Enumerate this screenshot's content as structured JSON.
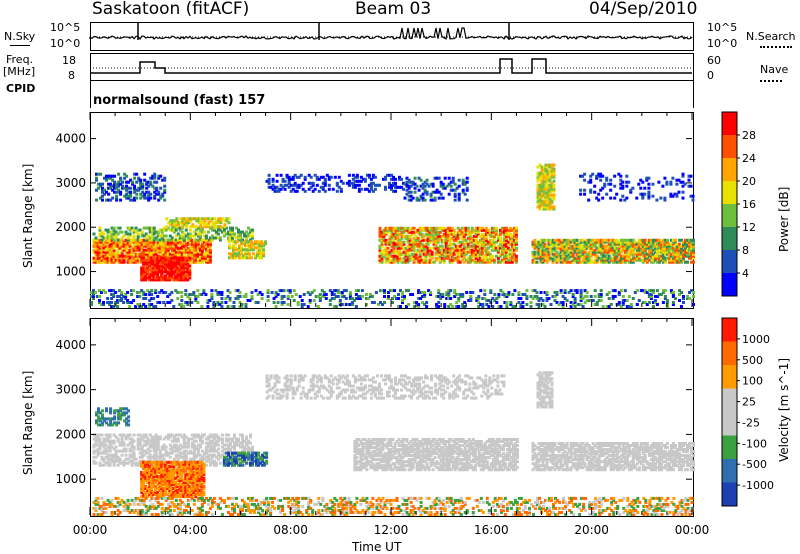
{
  "header": {
    "title": "Saskatoon (fitACF)",
    "beam": "Beam 03",
    "date": "04/Sep/2010"
  },
  "top_panels": {
    "nsky_label": "N.Sky",
    "nsearch_label": "N.Search",
    "nsky_ticks_left": [
      "10^5",
      "10^0"
    ],
    "nsky_ticks_right": [
      "10^5",
      "10^0"
    ],
    "freq_label_1": "Freq.",
    "freq_label_2": "[MHz]",
    "freq_ticks": [
      "18",
      "8"
    ],
    "nave_label": "Nave",
    "nave_ticks": [
      "60",
      "0"
    ],
    "cpid_label": "CPID",
    "cpid_text": "normalsound (fast) 157"
  },
  "chart_data": [
    {
      "type": "heatmap",
      "title": "",
      "xlabel": "",
      "ylabel": "Slant Range [km]",
      "xlim": [
        0,
        24
      ],
      "ylim": [
        200,
        4600
      ],
      "y_ticks": [
        "4000",
        "3000",
        "2000",
        "1000"
      ],
      "colorbar_label": "Power [dB]",
      "colorbar_ticks": [
        "28",
        "24",
        "20",
        "16",
        "12",
        "8",
        "4"
      ],
      "colorscale": [
        "#0000ff",
        "#1e4fb6",
        "#2e8b57",
        "#6fbf3f",
        "#e8e000",
        "#ffa500",
        "#ff5000",
        "#ff0000"
      ]
    },
    {
      "type": "heatmap",
      "title": "",
      "xlabel": "Time UT",
      "ylabel": "Slant Range [km]",
      "xlim": [
        0,
        24
      ],
      "ylim": [
        200,
        4600
      ],
      "x_ticks": [
        "00:00",
        "04:00",
        "08:00",
        "12:00",
        "16:00",
        "20:00",
        "00:00"
      ],
      "y_ticks": [
        "4000",
        "3000",
        "2000",
        "1000"
      ],
      "colorbar_label": "Velocity [m s^-1]",
      "colorbar_ticks": [
        "1000",
        "500",
        "100",
        "25",
        "-25",
        "-100",
        "-500",
        "-1000"
      ],
      "colorscale": [
        "#1e3fb0",
        "#2f6fb0",
        "#3aa040",
        "#c8c8c8",
        "#c8c8c8",
        "#ff9a00",
        "#ff6a00",
        "#ff1a00"
      ]
    }
  ]
}
